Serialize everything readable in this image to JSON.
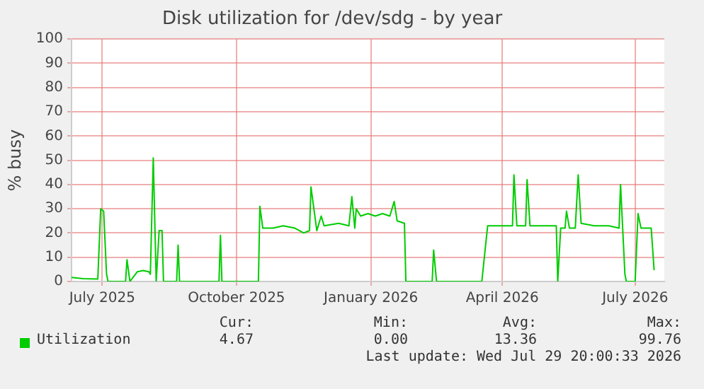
{
  "chart_data": {
    "type": "line",
    "title": "Disk utilization for /dev/sdg - by year",
    "ylabel": "% busy",
    "x": [
      "2025-06-10",
      "2025-06-18",
      "2025-06-28",
      "2025-06-30",
      "2025-07-02",
      "2025-07-04",
      "2025-07-05",
      "2025-07-17",
      "2025-07-18",
      "2025-07-20",
      "2025-07-25",
      "2025-07-29",
      "2025-08-02",
      "2025-08-03",
      "2025-08-05",
      "2025-08-07",
      "2025-08-09",
      "2025-08-11",
      "2025-08-12",
      "2025-08-21",
      "2025-08-22",
      "2025-08-23",
      "2025-09-19",
      "2025-09-20",
      "2025-09-21",
      "2025-10-16",
      "2025-10-17",
      "2025-10-19",
      "2025-10-26",
      "2025-11-02",
      "2025-11-10",
      "2025-11-16",
      "2025-11-20",
      "2025-11-21",
      "2025-11-25",
      "2025-11-28",
      "2025-11-30",
      "2025-12-10",
      "2025-12-17",
      "2025-12-19",
      "2025-12-21",
      "2025-12-22",
      "2025-12-25",
      "2025-12-30",
      "2026-01-04",
      "2026-01-09",
      "2026-01-14",
      "2026-01-17",
      "2026-01-19",
      "2026-01-24",
      "2026-01-25",
      "2026-02-12",
      "2026-02-13",
      "2026-02-15",
      "2026-03-18",
      "2026-03-22",
      "2026-03-30",
      "2026-04-08",
      "2026-04-09",
      "2026-04-11",
      "2026-04-17",
      "2026-04-18",
      "2026-04-20",
      "2026-04-29",
      "2026-05-08",
      "2026-05-09",
      "2026-05-11",
      "2026-05-14",
      "2026-05-15",
      "2026-05-17",
      "2026-05-21",
      "2026-05-23",
      "2026-05-25",
      "2026-06-03",
      "2026-06-13",
      "2026-06-20",
      "2026-06-21",
      "2026-06-24",
      "2026-06-25",
      "2026-07-01",
      "2026-07-03",
      "2026-07-05",
      "2026-07-12",
      "2026-07-14"
    ],
    "series": [
      {
        "name": "Utilization",
        "color": "#00cc00",
        "values": [
          1.7,
          1.2,
          1,
          30,
          29,
          3,
          0,
          0,
          9,
          0,
          4,
          4.5,
          4,
          3,
          51,
          0,
          21,
          21,
          0,
          0,
          15,
          0,
          0,
          19,
          0,
          0,
          31,
          22,
          22,
          23,
          22,
          20,
          21,
          39,
          21,
          27,
          23,
          24,
          23,
          35,
          22,
          30,
          27,
          28,
          27,
          28,
          27,
          33,
          25,
          24,
          0,
          0,
          13,
          0,
          0,
          23,
          23,
          23,
          44,
          23,
          23,
          42,
          23,
          23,
          23,
          0,
          22,
          22,
          29,
          22,
          22,
          44,
          24,
          23,
          23,
          22,
          40,
          3,
          0,
          0,
          28,
          22,
          22,
          4.67
        ]
      }
    ],
    "xlim": [
      "2025-06-10",
      "2026-07-21"
    ],
    "xticks": [
      {
        "value": "2025-07-01",
        "label": "July 2025"
      },
      {
        "value": "2025-10-01",
        "label": "October 2025"
      },
      {
        "value": "2026-01-01",
        "label": "January 2026"
      },
      {
        "value": "2026-04-01",
        "label": "April 2026"
      },
      {
        "value": "2026-07-01",
        "label": "July 2026"
      }
    ],
    "ylim": [
      0,
      100
    ],
    "yticks": [
      0,
      10,
      20,
      30,
      40,
      50,
      60,
      70,
      80,
      90,
      100
    ],
    "grid": true,
    "legend": "bottom",
    "annotations": [
      "Cur:",
      "Min:",
      "Avg:",
      "Max:",
      "4.67",
      "0.00",
      "13.36",
      "99.76",
      "Last update: Wed Jul 29 20:00:33 2026"
    ]
  }
}
